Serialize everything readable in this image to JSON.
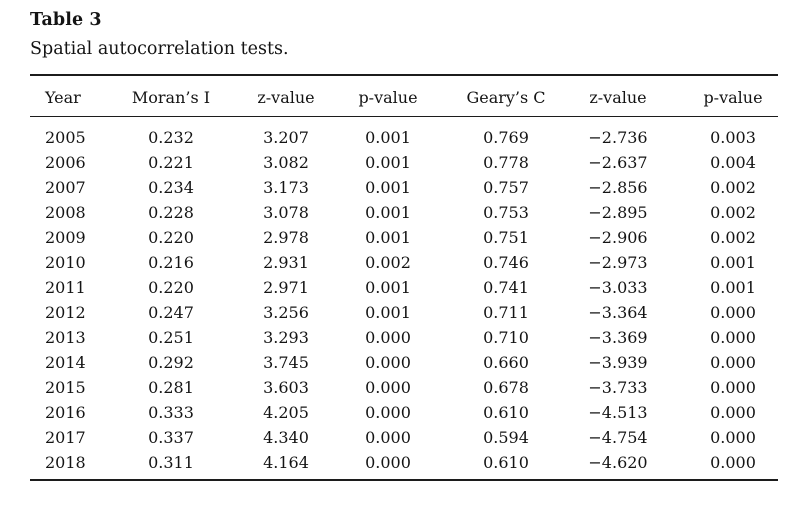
{
  "colors": {
    "background": "#ffffff",
    "text": "#141414",
    "rule": "#1c1c1c"
  },
  "table": {
    "label": "Table 3",
    "caption": "Spatial autocorrelation tests.",
    "columns": [
      "Year",
      "Moran’s I",
      "z-value",
      "p-value",
      "Geary’s C",
      "z-value",
      "p-value"
    ],
    "rows": [
      [
        "2005",
        "0.232",
        "3.207",
        "0.001",
        "0.769",
        "−2.736",
        "0.003"
      ],
      [
        "2006",
        "0.221",
        "3.082",
        "0.001",
        "0.778",
        "−2.637",
        "0.004"
      ],
      [
        "2007",
        "0.234",
        "3.173",
        "0.001",
        "0.757",
        "−2.856",
        "0.002"
      ],
      [
        "2008",
        "0.228",
        "3.078",
        "0.001",
        "0.753",
        "−2.895",
        "0.002"
      ],
      [
        "2009",
        "0.220",
        "2.978",
        "0.001",
        "0.751",
        "−2.906",
        "0.002"
      ],
      [
        "2010",
        "0.216",
        "2.931",
        "0.002",
        "0.746",
        "−2.973",
        "0.001"
      ],
      [
        "2011",
        "0.220",
        "2.971",
        "0.001",
        "0.741",
        "−3.033",
        "0.001"
      ],
      [
        "2012",
        "0.247",
        "3.256",
        "0.001",
        "0.711",
        "−3.364",
        "0.000"
      ],
      [
        "2013",
        "0.251",
        "3.293",
        "0.000",
        "0.710",
        "−3.369",
        "0.000"
      ],
      [
        "2014",
        "0.292",
        "3.745",
        "0.000",
        "0.660",
        "−3.939",
        "0.000"
      ],
      [
        "2015",
        "0.281",
        "3.603",
        "0.000",
        "0.678",
        "−3.733",
        "0.000"
      ],
      [
        "2016",
        "0.333",
        "4.205",
        "0.000",
        "0.610",
        "−4.513",
        "0.000"
      ],
      [
        "2017",
        "0.337",
        "4.340",
        "0.000",
        "0.594",
        "−4.754",
        "0.000"
      ],
      [
        "2018",
        "0.311",
        "4.164",
        "0.000",
        "0.610",
        "−4.620",
        "0.000"
      ]
    ]
  }
}
